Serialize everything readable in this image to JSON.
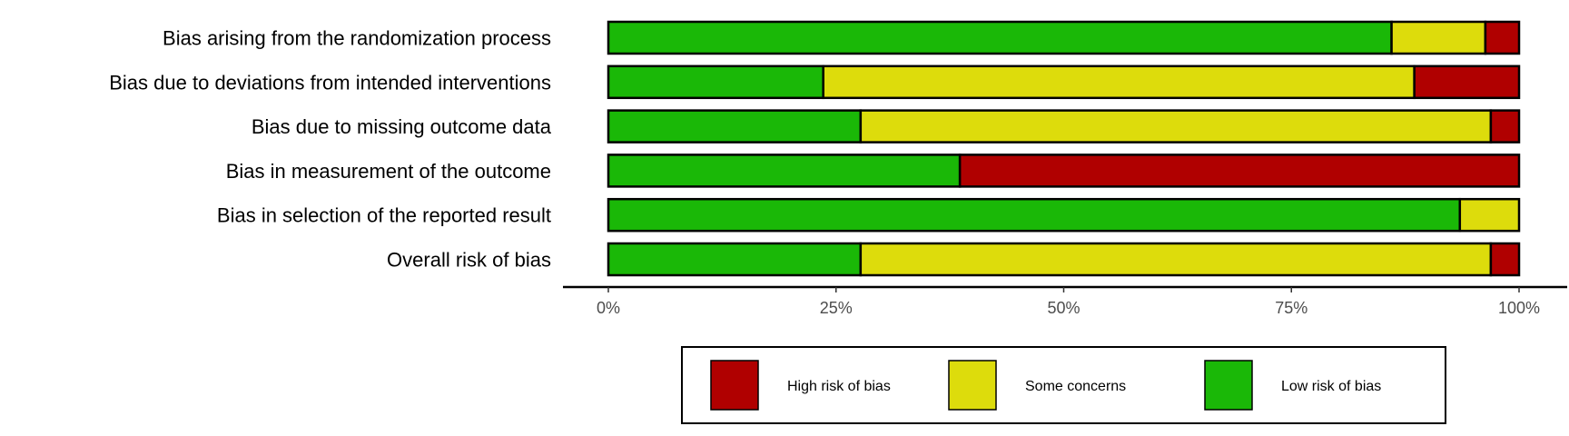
{
  "chart_data": {
    "type": "bar",
    "orientation": "horizontal",
    "stacked": true,
    "title": "",
    "xlabel": "",
    "ylabel": "",
    "xlim": [
      0,
      100
    ],
    "x_ticks": [
      "0%",
      "25%",
      "50%",
      "75%",
      "100%"
    ],
    "x_tick_values": [
      0,
      25,
      50,
      75,
      100
    ],
    "categories": [
      "Bias arising from the randomization process",
      "Bias due to deviations from intended interventions",
      "Bias due to missing outcome data",
      "Bias in measurement of the outcome",
      "Bias in selection of the reported result",
      "Overall risk of bias"
    ],
    "series": [
      {
        "name": "Low risk of bias",
        "color": "#1ab807",
        "values": [
          86.0,
          23.6,
          27.7,
          38.6,
          93.5,
          27.7
        ]
      },
      {
        "name": "Some concerns",
        "color": "#dddc0c",
        "values": [
          10.3,
          64.9,
          69.2,
          0,
          6.5,
          69.2
        ]
      },
      {
        "name": "High risk of bias",
        "color": "#b00000",
        "values": [
          3.7,
          11.5,
          3.1,
          61.4,
          0,
          3.1
        ]
      }
    ],
    "legend": {
      "position": "bottom",
      "order": [
        "High risk of bias",
        "Some concerns",
        "Low risk of bias"
      ]
    },
    "grid": false
  }
}
